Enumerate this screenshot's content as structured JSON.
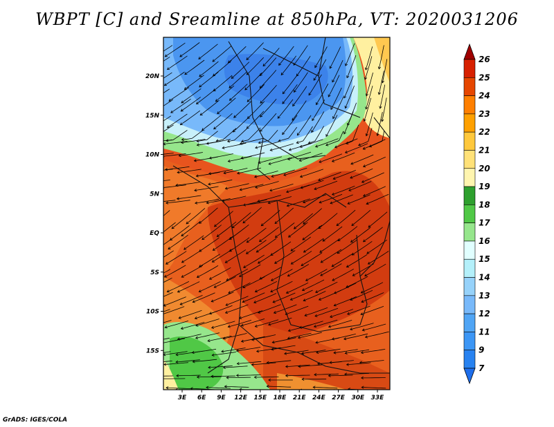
{
  "title": "WBPT [C] and Sreamline at 850hPa, VT: 2020031206",
  "credit": "GrADS: IGES/COLA",
  "map": {
    "lat_ticks": [
      {
        "lat": 20,
        "label": "20N"
      },
      {
        "lat": 15,
        "label": "15N"
      },
      {
        "lat": 10,
        "label": "10N"
      },
      {
        "lat": 5,
        "label": "5N"
      },
      {
        "lat": 0,
        "label": "EQ"
      },
      {
        "lat": -5,
        "label": "5S"
      },
      {
        "lat": -10,
        "label": "10S"
      },
      {
        "lat": -15,
        "label": "15S"
      }
    ],
    "lon_ticks": [
      {
        "lon": 3,
        "label": "3E"
      },
      {
        "lon": 6,
        "label": "6E"
      },
      {
        "lon": 9,
        "label": "9E"
      },
      {
        "lon": 12,
        "label": "12E"
      },
      {
        "lon": 15,
        "label": "15E"
      },
      {
        "lon": 18,
        "label": "18E"
      },
      {
        "lon": 21,
        "label": "21E"
      },
      {
        "lon": 24,
        "label": "24E"
      },
      {
        "lon": 27,
        "label": "27E"
      },
      {
        "lon": 30,
        "label": "30E"
      },
      {
        "lon": 33,
        "label": "33E"
      }
    ]
  },
  "colorbar": {
    "levels": [
      "7",
      "9",
      "11",
      "12",
      "13",
      "14",
      "15",
      "16",
      "17",
      "18",
      "19",
      "20",
      "21",
      "22",
      "23",
      "24",
      "25",
      "26"
    ],
    "colors": [
      "#1e6eeb",
      "#2882f0",
      "#3c96f5",
      "#50a5f5",
      "#78b9fa",
      "#96d2fa",
      "#b4f0fa",
      "#e1ffff",
      "#96e68c",
      "#50c846",
      "#2ea02e",
      "#fff5af",
      "#ffe178",
      "#ffc83c",
      "#ffa000",
      "#ff7f00",
      "#e64600",
      "#d72000",
      "#a00000"
    ]
  },
  "regions": [
    {
      "name": "blue-core",
      "color": "#3c8cf0"
    },
    {
      "name": "blue-light",
      "color": "#78b9fa"
    },
    {
      "name": "pale",
      "color": "#c8f0fa"
    },
    {
      "name": "green",
      "color": "#96e68c"
    },
    {
      "name": "orange",
      "color": "#f07a1e"
    },
    {
      "name": "red",
      "color": "#d7360f"
    }
  ]
}
